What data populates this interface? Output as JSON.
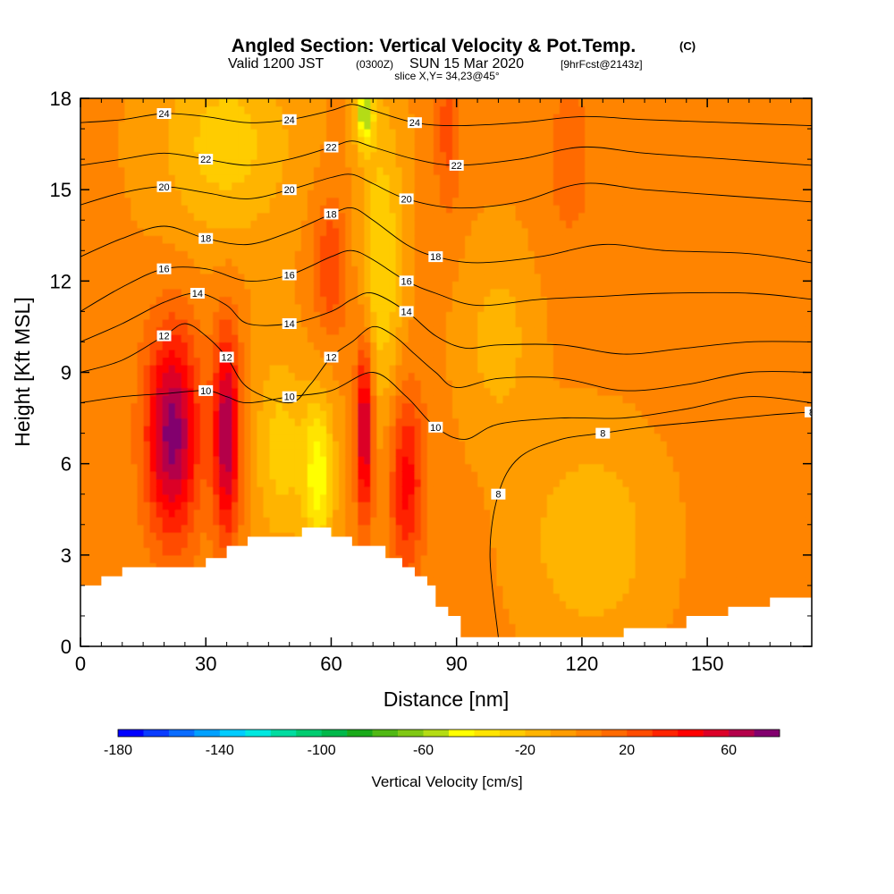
{
  "header": {
    "title_main": "Angled Section: Vertical Velocity & Pot.Temp.",
    "title_suffix": "(C)",
    "valid_a": "Valid 1200 JST",
    "valid_b": "(0300Z)",
    "valid_c": "SUN 15 Mar 2020",
    "valid_d": "[9hrFcst@2143z]",
    "slice": "slice X,Y= 34,23@45°"
  },
  "chart_data": {
    "type": "heatmap",
    "xlabel": "Distance [nm]",
    "ylabel": "Height [Kft MSL]",
    "xlim": [
      0,
      175
    ],
    "ylim": [
      0,
      18
    ],
    "x_ticks": [
      0,
      30,
      60,
      90,
      120,
      150
    ],
    "x_tick_labels": [
      "0",
      "30",
      "60",
      "90",
      "120",
      "150"
    ],
    "y_ticks": [
      0,
      3,
      6,
      9,
      12,
      15,
      18
    ],
    "y_tick_labels": [
      "0",
      "3",
      "6",
      "9",
      "12",
      "15",
      "18"
    ],
    "colorbar": {
      "label": "Vertical Velocity [cm/s]",
      "min": -180,
      "max": 80,
      "step": 10,
      "tick_values": [
        -180,
        -140,
        -100,
        -60,
        -20,
        20,
        60
      ],
      "tick_labels": [
        "-180",
        "-140",
        "-100",
        "-60",
        "-20",
        "20",
        "60"
      ],
      "colors": [
        "#0000ff",
        "#0a3cff",
        "#0a6cff",
        "#00a0ff",
        "#00ccff",
        "#00e8e0",
        "#00dca0",
        "#00cc70",
        "#00b84a",
        "#1aaa1a",
        "#50b814",
        "#80c814",
        "#b4dc14",
        "#ffff00",
        "#ffe400",
        "#ffcc00",
        "#ffb400",
        "#ff9c00",
        "#ff8400",
        "#ff6a00",
        "#ff4c00",
        "#ff2400",
        "#ff0000",
        "#dc0028",
        "#b4004a",
        "#82006e"
      ]
    },
    "terrain": [
      [
        0,
        2
      ],
      [
        5,
        2.3
      ],
      [
        10,
        2.6
      ],
      [
        15,
        2.6
      ],
      [
        20,
        2.6
      ],
      [
        25,
        2.6
      ],
      [
        30,
        2.9
      ],
      [
        35,
        3.3
      ],
      [
        40,
        3.6
      ],
      [
        45,
        3.6
      ],
      [
        50,
        3.6
      ],
      [
        53,
        3.9
      ],
      [
        56,
        3.9
      ],
      [
        60,
        3.6
      ],
      [
        65,
        3.3
      ],
      [
        70,
        3.3
      ],
      [
        73,
        2.9
      ],
      [
        77,
        2.6
      ],
      [
        80,
        2.3
      ],
      [
        83,
        2.0
      ],
      [
        85,
        1.3
      ],
      [
        88,
        1.0
      ],
      [
        91,
        0.3
      ],
      [
        100,
        0.3
      ],
      [
        110,
        0.3
      ],
      [
        120,
        0.3
      ],
      [
        130,
        0.6
      ],
      [
        140,
        0.6
      ],
      [
        145,
        1.0
      ],
      [
        150,
        1.0
      ],
      [
        155,
        1.3
      ],
      [
        160,
        1.3
      ],
      [
        165,
        1.6
      ],
      [
        170,
        1.6
      ],
      [
        175,
        1.6
      ]
    ],
    "velocity_features": [
      {
        "x": 22,
        "y": 7,
        "dx": 6,
        "dy": 3.2,
        "value": 75
      },
      {
        "x": 35,
        "y": 7,
        "dx": 3,
        "dy": 3.2,
        "value": 70
      },
      {
        "x": 68,
        "y": 7.2,
        "dx": 2,
        "dy": 2.8,
        "value": 70
      },
      {
        "x": 78,
        "y": 5.5,
        "dx": 4,
        "dy": 3.0,
        "value": 45
      },
      {
        "x": 60,
        "y": 12.5,
        "dx": 4,
        "dy": 2.2,
        "value": 30
      },
      {
        "x": 88,
        "y": 17,
        "dx": 3,
        "dy": 2.5,
        "value": 25
      },
      {
        "x": 117,
        "y": 16,
        "dx": 6,
        "dy": 3,
        "value": 15
      },
      {
        "x": 57,
        "y": 5.6,
        "dx": 3.5,
        "dy": 2.5,
        "value": -45
      },
      {
        "x": 72,
        "y": 12.5,
        "dx": 5,
        "dy": 5,
        "value": -30
      },
      {
        "x": 35,
        "y": 16.5,
        "dx": 15,
        "dy": 3,
        "value": -25
      },
      {
        "x": 48,
        "y": 6.5,
        "dx": 6,
        "dy": 3,
        "value": -25
      },
      {
        "x": 68,
        "y": 17.5,
        "dx": 2,
        "dy": 1,
        "value": -55
      },
      {
        "x": 122,
        "y": 3.5,
        "dx": 14,
        "dy": 3,
        "value": -20
      },
      {
        "x": 100,
        "y": 10,
        "dx": 8,
        "dy": 3,
        "value": -15
      }
    ],
    "background_value": 2,
    "isotherms": [
      {
        "label": "8",
        "points": [
          [
            100,
            0.3
          ],
          [
            98,
            3
          ],
          [
            100,
            5
          ],
          [
            105,
            6.2
          ],
          [
            115,
            6.8
          ],
          [
            125,
            7.0
          ],
          [
            135,
            7.2
          ],
          [
            150,
            7.4
          ],
          [
            165,
            7.6
          ],
          [
            175,
            7.7
          ]
        ]
      },
      {
        "label": "10",
        "points": [
          [
            0,
            8.0
          ],
          [
            10,
            8.2
          ],
          [
            20,
            8.3
          ],
          [
            30,
            8.4
          ],
          [
            35,
            8.2
          ],
          [
            40,
            8.0
          ],
          [
            50,
            8.2
          ],
          [
            60,
            8.4
          ],
          [
            70,
            9.0
          ],
          [
            78,
            8.2
          ],
          [
            85,
            7.2
          ],
          [
            92,
            6.8
          ],
          [
            100,
            7.3
          ],
          [
            115,
            7.5
          ],
          [
            130,
            7.5
          ],
          [
            145,
            7.8
          ],
          [
            160,
            8.2
          ],
          [
            175,
            8.0
          ]
        ]
      },
      {
        "label": "12",
        "points": [
          [
            0,
            9.0
          ],
          [
            10,
            9.4
          ],
          [
            20,
            10.2
          ],
          [
            25,
            10.6
          ],
          [
            30,
            10.2
          ],
          [
            35,
            9.5
          ],
          [
            40,
            8.5
          ],
          [
            50,
            8.0
          ],
          [
            55,
            8.6
          ],
          [
            60,
            9.5
          ],
          [
            65,
            10.0
          ],
          [
            70,
            10.5
          ],
          [
            75,
            10.2
          ],
          [
            80,
            9.6
          ],
          [
            85,
            9.0
          ],
          [
            90,
            8.5
          ],
          [
            100,
            8.8
          ],
          [
            115,
            8.8
          ],
          [
            130,
            8.4
          ],
          [
            145,
            8.6
          ],
          [
            160,
            9.0
          ],
          [
            175,
            9.0
          ]
        ]
      },
      {
        "label": "14",
        "points": [
          [
            0,
            10.0
          ],
          [
            10,
            10.6
          ],
          [
            20,
            11.3
          ],
          [
            28,
            11.6
          ],
          [
            35,
            11.2
          ],
          [
            40,
            10.6
          ],
          [
            50,
            10.6
          ],
          [
            60,
            11.0
          ],
          [
            65,
            11.4
          ],
          [
            70,
            11.6
          ],
          [
            78,
            11.0
          ],
          [
            85,
            10.2
          ],
          [
            92,
            9.8
          ],
          [
            100,
            9.9
          ],
          [
            115,
            9.9
          ],
          [
            130,
            9.6
          ],
          [
            145,
            9.8
          ],
          [
            160,
            10.0
          ],
          [
            175,
            10.0
          ]
        ]
      },
      {
        "label": "16",
        "points": [
          [
            0,
            11.0
          ],
          [
            10,
            11.8
          ],
          [
            20,
            12.4
          ],
          [
            30,
            12.4
          ],
          [
            40,
            12.0
          ],
          [
            50,
            12.2
          ],
          [
            60,
            12.8
          ],
          [
            65,
            13.0
          ],
          [
            70,
            12.7
          ],
          [
            78,
            12.0
          ],
          [
            85,
            11.6
          ],
          [
            95,
            11.2
          ],
          [
            110,
            11.4
          ],
          [
            125,
            11.5
          ],
          [
            140,
            11.6
          ],
          [
            160,
            11.6
          ],
          [
            175,
            11.4
          ]
        ]
      },
      {
        "label": "18",
        "points": [
          [
            0,
            12.8
          ],
          [
            10,
            13.4
          ],
          [
            20,
            13.8
          ],
          [
            30,
            13.4
          ],
          [
            40,
            13.2
          ],
          [
            50,
            13.6
          ],
          [
            60,
            14.2
          ],
          [
            65,
            14.4
          ],
          [
            70,
            14.0
          ],
          [
            78,
            13.2
          ],
          [
            85,
            12.8
          ],
          [
            95,
            12.6
          ],
          [
            110,
            12.8
          ],
          [
            125,
            13.2
          ],
          [
            140,
            13.0
          ],
          [
            160,
            12.9
          ],
          [
            175,
            12.6
          ]
        ]
      },
      {
        "label": "20",
        "points": [
          [
            0,
            14.5
          ],
          [
            10,
            14.9
          ],
          [
            20,
            15.1
          ],
          [
            30,
            14.9
          ],
          [
            40,
            14.7
          ],
          [
            50,
            15.0
          ],
          [
            60,
            15.4
          ],
          [
            65,
            15.5
          ],
          [
            70,
            15.2
          ],
          [
            78,
            14.7
          ],
          [
            90,
            14.4
          ],
          [
            105,
            14.6
          ],
          [
            120,
            15.2
          ],
          [
            135,
            15.0
          ],
          [
            155,
            14.8
          ],
          [
            175,
            14.6
          ]
        ]
      },
      {
        "label": "22",
        "points": [
          [
            0,
            15.8
          ],
          [
            10,
            16.0
          ],
          [
            20,
            16.2
          ],
          [
            30,
            16.0
          ],
          [
            40,
            15.8
          ],
          [
            50,
            16.0
          ],
          [
            60,
            16.4
          ],
          [
            65,
            16.6
          ],
          [
            70,
            16.4
          ],
          [
            80,
            16.0
          ],
          [
            90,
            15.8
          ],
          [
            105,
            16.0
          ],
          [
            120,
            16.4
          ],
          [
            135,
            16.2
          ],
          [
            155,
            16.0
          ],
          [
            175,
            15.8
          ]
        ]
      },
      {
        "label": "24",
        "points": [
          [
            0,
            17.2
          ],
          [
            10,
            17.3
          ],
          [
            20,
            17.5
          ],
          [
            30,
            17.4
          ],
          [
            40,
            17.2
          ],
          [
            50,
            17.3
          ],
          [
            60,
            17.6
          ],
          [
            65,
            17.8
          ],
          [
            70,
            17.6
          ],
          [
            80,
            17.2
          ],
          [
            90,
            17.1
          ],
          [
            105,
            17.2
          ],
          [
            120,
            17.4
          ],
          [
            135,
            17.3
          ],
          [
            155,
            17.2
          ],
          [
            175,
            17.1
          ]
        ]
      }
    ]
  }
}
